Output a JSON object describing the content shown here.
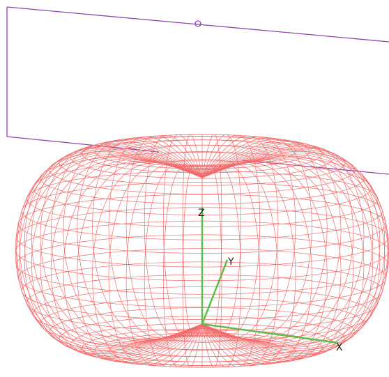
{
  "axes": {
    "z": "Z",
    "y": "Y",
    "x": "X"
  }
}
